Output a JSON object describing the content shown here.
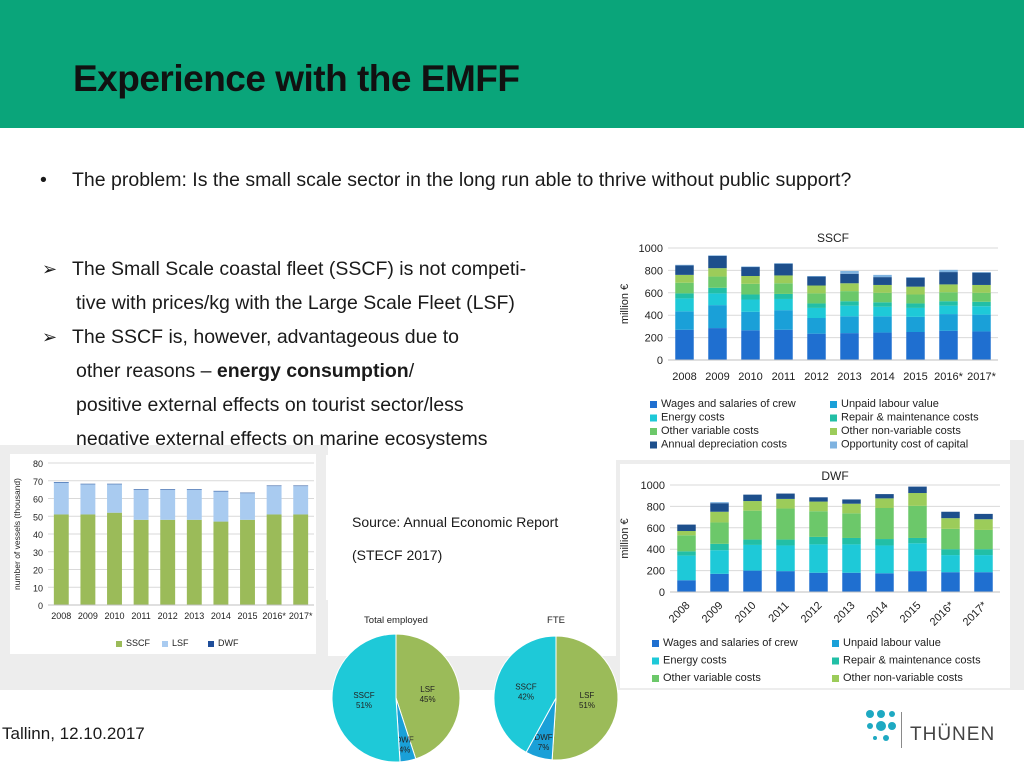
{
  "slide": {
    "title": "Experience with the EMFF",
    "bullet_main": "The problem: Is the small scale sector in the long run able to thrive without public support?",
    "arrow_items": [
      {
        "lines": [
          "The Small Scale coastal fleet (SSCF) is not competi-",
          "tive with prices/kg with the Large Scale Fleet (LSF)"
        ]
      },
      {
        "lines_pre": "The SSCF is, however, advantageous due to",
        "line2_a": "other reasons – ",
        "line2_bold": "energy consumption",
        "line2_b": "/",
        "line3": "positive external effects on tourist sector/less",
        "line4": "negative external effects on marine ecosystems"
      }
    ],
    "source_line1": "Source: Annual Economic Report",
    "source_line2": "(STECF 2017)",
    "footer_date": "Tallinn, 12.10.2017",
    "logo_text": "THÜNEN"
  },
  "colors": {
    "header_green": "#0aa57a",
    "wages": "#1f6fd0",
    "unpaid": "#1aa0d8",
    "energy": "#1ec9d8",
    "repair": "#22bfa6",
    "other_var": "#6cc86a",
    "other_nonvar": "#9ccc5a",
    "depreciation": "#1d4f8c",
    "opportunity": "#7fb3e0",
    "sscf": "#9bbb59",
    "lsf": "#a9cbf0",
    "dwf": "#1f4e9a",
    "pie_cyan": "#1ec9d8",
    "pie_green": "#9bbb59",
    "pie_blue": "#1aa0d8"
  },
  "chart_data": [
    {
      "id": "sscf_costs",
      "type": "bar",
      "stacked": true,
      "title": "SSCF",
      "ylabel": "million €",
      "ylim": [
        0,
        1000
      ],
      "yticks": [
        0,
        200,
        400,
        600,
        800,
        1000
      ],
      "categories": [
        "2008",
        "2009",
        "2010",
        "2011",
        "2012",
        "2013",
        "2014",
        "2015",
        "2016*",
        "2017*"
      ],
      "series": [
        {
          "name": "Wages and salaries of crew",
          "color_key": "wages",
          "values": [
            270,
            285,
            265,
            270,
            235,
            240,
            245,
            250,
            260,
            255
          ]
        },
        {
          "name": "Unpaid labour value",
          "color_key": "unpaid",
          "values": [
            165,
            205,
            165,
            175,
            140,
            150,
            145,
            135,
            150,
            150
          ]
        },
        {
          "name": "Energy costs",
          "color_key": "energy",
          "values": [
            115,
            105,
            110,
            100,
            90,
            95,
            85,
            80,
            75,
            75
          ]
        },
        {
          "name": "Repair & maintenance costs",
          "color_key": "repair",
          "values": [
            45,
            50,
            45,
            45,
            40,
            40,
            40,
            40,
            40,
            40
          ]
        },
        {
          "name": "Other variable costs",
          "color_key": "other_var",
          "values": [
            95,
            100,
            95,
            95,
            90,
            90,
            85,
            80,
            80,
            80
          ]
        },
        {
          "name": "Other non-variable costs",
          "color_key": "other_nonvar",
          "values": [
            70,
            75,
            70,
            70,
            70,
            70,
            70,
            70,
            70,
            70
          ]
        },
        {
          "name": "Annual depreciation costs",
          "color_key": "depreciation",
          "values": [
            85,
            110,
            80,
            105,
            80,
            85,
            70,
            80,
            110,
            110
          ]
        },
        {
          "name": "Opportunity cost of capital",
          "color_key": "opportunity",
          "values": [
            5,
            5,
            5,
            5,
            5,
            25,
            20,
            5,
            20,
            5
          ]
        }
      ],
      "legend": "bottom"
    },
    {
      "id": "vessels",
      "type": "bar",
      "stacked": true,
      "title": "",
      "ylabel": "number of vessels (thousand)",
      "ylim": [
        0,
        80
      ],
      "yticks": [
        0,
        10,
        20,
        30,
        40,
        50,
        60,
        70,
        80
      ],
      "categories": [
        "2008",
        "2009",
        "2010",
        "2011",
        "2012",
        "2013",
        "2014",
        "2015",
        "2016*",
        "2017*"
      ],
      "series": [
        {
          "name": "SSCF",
          "color_key": "sscf",
          "values": [
            51,
            51,
            52,
            48,
            48,
            48,
            47,
            48,
            51,
            51
          ]
        },
        {
          "name": "LSF",
          "color_key": "lsf",
          "values": [
            18,
            17,
            16,
            17,
            17,
            17,
            17,
            15,
            16,
            16
          ]
        },
        {
          "name": "DWF",
          "color_key": "dwf",
          "values": [
            0.3,
            0.3,
            0.3,
            0.3,
            0.3,
            0.3,
            0.3,
            0.3,
            0.3,
            0.3
          ]
        }
      ],
      "legend": "bottom"
    },
    {
      "id": "dwf_costs",
      "type": "bar",
      "stacked": true,
      "title": "DWF",
      "ylabel": "million €",
      "ylim": [
        0,
        1000
      ],
      "yticks": [
        0,
        200,
        400,
        600,
        800,
        1000
      ],
      "categories": [
        "2008",
        "2009",
        "2010",
        "2011",
        "2012",
        "2013",
        "2014",
        "2015",
        "2016*",
        "2017*"
      ],
      "series": [
        {
          "name": "Wages and salaries of crew",
          "color_key": "wages",
          "values": [
            110,
            170,
            200,
            195,
            180,
            180,
            175,
            195,
            185,
            185
          ]
        },
        {
          "name": "Unpaid labour value",
          "color_key": "unpaid",
          "values": [
            0,
            0,
            0,
            0,
            0,
            0,
            0,
            0,
            0,
            0
          ]
        },
        {
          "name": "Energy costs",
          "color_key": "energy",
          "values": [
            230,
            220,
            240,
            240,
            265,
            265,
            260,
            260,
            160,
            160
          ]
        },
        {
          "name": "Repair & maintenance costs",
          "color_key": "repair",
          "values": [
            40,
            60,
            50,
            55,
            70,
            60,
            60,
            50,
            55,
            55
          ]
        },
        {
          "name": "Other variable costs",
          "color_key": "other_var",
          "values": [
            150,
            200,
            270,
            290,
            240,
            230,
            290,
            300,
            190,
            180
          ]
        },
        {
          "name": "Other non-variable costs",
          "color_key": "other_nonvar",
          "values": [
            40,
            100,
            90,
            90,
            90,
            90,
            90,
            120,
            100,
            100
          ]
        },
        {
          "name": "Annual depreciation costs",
          "color_key": "depreciation",
          "values": [
            60,
            80,
            60,
            50,
            40,
            40,
            40,
            60,
            60,
            50
          ]
        },
        {
          "name": "Opportunity cost of capital",
          "color_key": "opportunity",
          "values": [
            0,
            10,
            0,
            0,
            0,
            0,
            0,
            0,
            0,
            0
          ]
        }
      ],
      "legend_visible": [
        "Wages and salaries of crew",
        "Unpaid labour value",
        "Energy costs",
        "Repair & maintenance costs",
        "Other variable costs",
        "Other non-variable costs"
      ],
      "legend": "bottom"
    },
    {
      "id": "pie_total_employed",
      "type": "pie",
      "title": "Total employed",
      "slices": [
        {
          "label": "LSF",
          "value": 45,
          "pct_label": "45%",
          "color_key": "pie_green"
        },
        {
          "label": "DWF",
          "value": 4,
          "pct_label": "4%",
          "color_key": "pie_blue"
        },
        {
          "label": "SSCF",
          "value": 51,
          "pct_label": "51%",
          "color_key": "pie_cyan"
        }
      ]
    },
    {
      "id": "pie_fte",
      "type": "pie",
      "title": "FTE",
      "slices": [
        {
          "label": "LSF",
          "value": 51,
          "pct_label": "51%",
          "color_key": "pie_green"
        },
        {
          "label": "DWF",
          "value": 7,
          "pct_label": "7%",
          "color_key": "pie_blue"
        },
        {
          "label": "SSCF",
          "value": 42,
          "pct_label": "42%",
          "color_key": "pie_cyan"
        }
      ]
    }
  ]
}
